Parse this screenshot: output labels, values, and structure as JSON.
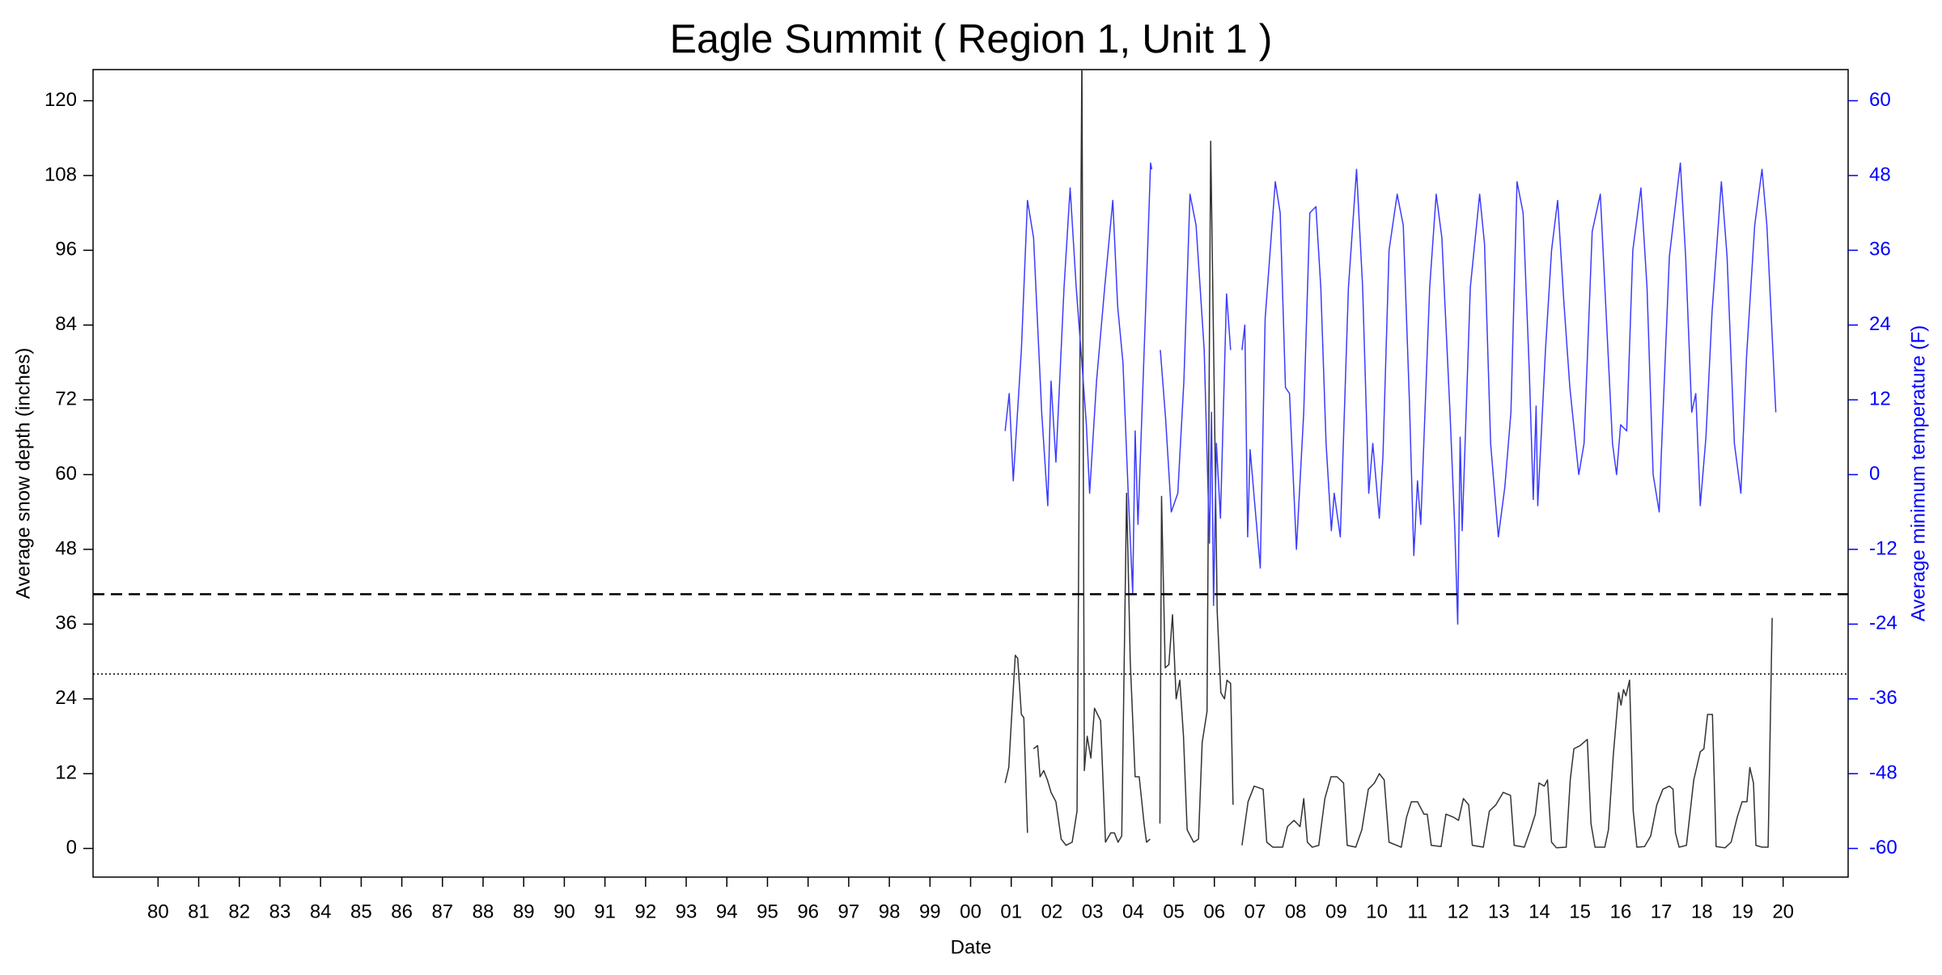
{
  "chart_data": {
    "type": "line",
    "title": "Eagle Summit ( Region 1, Unit 1 )",
    "x_label": "Date",
    "y_label": "Average snow depth (inches)",
    "y2_label": "Average minimum temperature (F)",
    "y2_color": "#0000ff",
    "xlim": [
      1978.4,
      2021.6
    ],
    "ylim": [
      -4.6,
      125
    ],
    "y2lim": [
      -64.6,
      65
    ],
    "xticks": [
      {
        "value": 1980,
        "label": "80"
      },
      {
        "value": 1981,
        "label": "81"
      },
      {
        "value": 1982,
        "label": "82"
      },
      {
        "value": 1983,
        "label": "83"
      },
      {
        "value": 1984,
        "label": "84"
      },
      {
        "value": 1985,
        "label": "85"
      },
      {
        "value": 1986,
        "label": "86"
      },
      {
        "value": 1987,
        "label": "87"
      },
      {
        "value": 1988,
        "label": "88"
      },
      {
        "value": 1989,
        "label": "89"
      },
      {
        "value": 1990,
        "label": "90"
      },
      {
        "value": 1991,
        "label": "91"
      },
      {
        "value": 1992,
        "label": "92"
      },
      {
        "value": 1993,
        "label": "93"
      },
      {
        "value": 1994,
        "label": "94"
      },
      {
        "value": 1995,
        "label": "95"
      },
      {
        "value": 1996,
        "label": "96"
      },
      {
        "value": 1997,
        "label": "97"
      },
      {
        "value": 1998,
        "label": "98"
      },
      {
        "value": 1999,
        "label": "99"
      },
      {
        "value": 2000,
        "label": "00"
      },
      {
        "value": 2001,
        "label": "01"
      },
      {
        "value": 2002,
        "label": "02"
      },
      {
        "value": 2003,
        "label": "03"
      },
      {
        "value": 2004,
        "label": "04"
      },
      {
        "value": 2005,
        "label": "05"
      },
      {
        "value": 2006,
        "label": "06"
      },
      {
        "value": 2007,
        "label": "07"
      },
      {
        "value": 2008,
        "label": "08"
      },
      {
        "value": 2009,
        "label": "09"
      },
      {
        "value": 2010,
        "label": "10"
      },
      {
        "value": 2011,
        "label": "11"
      },
      {
        "value": 2012,
        "label": "12"
      },
      {
        "value": 2013,
        "label": "13"
      },
      {
        "value": 2014,
        "label": "14"
      },
      {
        "value": 2015,
        "label": "15"
      },
      {
        "value": 2016,
        "label": "16"
      },
      {
        "value": 2017,
        "label": "17"
      },
      {
        "value": 2018,
        "label": "18"
      },
      {
        "value": 2019,
        "label": "19"
      },
      {
        "value": 2020,
        "label": "20"
      }
    ],
    "yticks": [
      0,
      12,
      24,
      36,
      48,
      60,
      72,
      84,
      96,
      108,
      120
    ],
    "y2ticks": [
      -60,
      -48,
      -36,
      -24,
      -12,
      0,
      12,
      24,
      36,
      48,
      60
    ],
    "hlines": [
      {
        "value": 40.8,
        "dash": "dashed"
      },
      {
        "value": 28,
        "dash": "dotted"
      }
    ],
    "series": [
      {
        "color": "#333333",
        "x": [
          2000.85,
          2000.94,
          2001.0,
          2001.1,
          2001.16,
          2001.25,
          2001.31,
          2001.4,
          2001.45,
          2001.55,
          2001.65,
          2001.71,
          2001.8,
          2001.89,
          2001.98,
          2002.1,
          2002.23,
          2002.35,
          2002.5,
          2002.62,
          2002.74,
          2002.8,
          2002.87,
          2002.96,
          2003.05,
          2003.2,
          2003.32,
          2003.45,
          2003.54,
          2003.63,
          2003.72,
          2003.84,
          2003.93,
          2004.05,
          2004.15,
          2004.27,
          2004.33,
          2004.42,
          2004.5,
          2004.66,
          2004.7,
          2004.79,
          2004.88,
          2004.97,
          2005.06,
          2005.15,
          2005.24,
          2005.33,
          2005.49,
          2005.61,
          2005.7,
          2005.82,
          2005.91,
          2006.0,
          2006.07,
          2006.16,
          2006.25,
          2006.31,
          2006.4,
          2006.46,
          2006.55,
          2006.68,
          2006.83,
          2006.98,
          2007.2,
          2007.29,
          2007.44,
          2007.68,
          2007.8,
          2007.96,
          2008.11,
          2008.2,
          2008.29,
          2008.41,
          2008.57,
          2008.72,
          2008.87,
          2009.02,
          2009.18,
          2009.27,
          2009.48,
          2009.63,
          2009.79,
          2009.94,
          2010.06,
          2010.18,
          2010.3,
          2010.6,
          2010.73,
          2010.85,
          2011.0,
          2011.16,
          2011.24,
          2011.34,
          2011.58,
          2011.7,
          2011.89,
          2012.01,
          2012.13,
          2012.26,
          2012.35,
          2012.62,
          2012.77,
          2012.93,
          2013.11,
          2013.29,
          2013.38,
          2013.63,
          2013.78,
          2013.9,
          2013.99,
          2014.12,
          2014.2,
          2014.3,
          2014.42,
          2014.66,
          2014.76,
          2014.85,
          2015.0,
          2015.18,
          2015.27,
          2015.37,
          2015.61,
          2015.7,
          2015.82,
          2015.95,
          2016.01,
          2016.07,
          2016.13,
          2016.22,
          2016.31,
          2016.4,
          2016.59,
          2016.74,
          2016.89,
          2017.04,
          2017.2,
          2017.29,
          2017.35,
          2017.44,
          2017.62,
          2017.8,
          2017.96,
          2018.05,
          2018.14,
          2018.26,
          2018.35,
          2018.57,
          2018.72,
          2018.87,
          2018.99,
          2019.11,
          2019.18,
          2019.27,
          2019.33,
          2019.48,
          2019.63,
          2019.73
        ],
        "values": [
          10.5,
          13,
          20,
          31,
          30.5,
          21.5,
          21,
          2.5,
          null,
          16,
          16.5,
          11.5,
          12.5,
          11,
          9,
          7.5,
          1.5,
          0.5,
          1,
          6,
          128,
          12.5,
          18,
          14.5,
          22.5,
          20.5,
          1,
          2.5,
          2.5,
          1,
          2,
          57,
          30,
          11.5,
          11.5,
          4,
          1,
          1.5,
          null,
          4,
          56.5,
          29,
          29.5,
          37.5,
          24,
          27,
          18,
          3,
          1,
          1.5,
          17,
          22,
          113.5,
          72,
          38,
          25,
          24,
          27,
          26.5,
          7,
          null,
          0.5,
          7.5,
          10,
          9.5,
          1,
          0.2,
          0.2,
          3.5,
          4.5,
          3.5,
          8,
          1,
          0.2,
          0.5,
          8,
          11.5,
          11.5,
          10.5,
          0.5,
          0.2,
          3,
          9.5,
          10.5,
          12,
          11,
          1,
          0.2,
          5,
          7.5,
          7.5,
          5.5,
          5.5,
          0.5,
          0.3,
          5.5,
          5,
          4.5,
          8,
          7,
          0.5,
          0.2,
          6,
          7,
          9,
          8.5,
          0.5,
          0.2,
          3,
          5.5,
          10.5,
          10,
          11,
          1,
          0.1,
          0.2,
          11,
          16,
          16.5,
          17.5,
          4,
          0.2,
          0.2,
          3,
          15,
          25,
          23,
          25.5,
          24.5,
          27,
          6,
          0.2,
          0.3,
          2,
          7,
          9.5,
          10,
          9.5,
          2.5,
          0.2,
          0.5,
          11,
          15.5,
          16,
          21.5,
          21.5,
          0.3,
          0.1,
          1,
          5,
          7.5,
          7.5,
          13,
          10.5,
          0.5,
          0.2,
          0.2,
          37
        ]
      },
      {
        "color": "#3b3bff",
        "axis": "y2",
        "x": [
          2000.85,
          2000.95,
          2001.05,
          2001.25,
          2001.4,
          2001.55,
          2001.75,
          2001.9,
          2001.98,
          2002.1,
          2002.3,
          2002.45,
          2002.6,
          2002.75,
          2002.85,
          2002.93,
          2003.1,
          2003.3,
          2003.5,
          2003.62,
          2003.75,
          2003.88,
          2003.99,
          2004.05,
          2004.12,
          2004.3,
          2004.43,
          2004.46,
          2004.55,
          2004.67,
          2004.8,
          2004.94,
          2005.1,
          2005.25,
          2005.4,
          2005.55,
          2005.75,
          2005.88,
          2005.93,
          2005.98,
          2006.05,
          2006.15,
          2006.3,
          2006.4,
          2006.55,
          2006.68,
          2006.75,
          2006.82,
          2006.88,
          2007.13,
          2007.25,
          2007.5,
          2007.62,
          2007.75,
          2007.85,
          2008.02,
          2008.2,
          2008.35,
          2008.5,
          2008.62,
          2008.75,
          2008.88,
          2008.95,
          2009.1,
          2009.3,
          2009.5,
          2009.65,
          2009.8,
          2009.9,
          2010.06,
          2010.15,
          2010.3,
          2010.5,
          2010.65,
          2010.8,
          2010.91,
          2011.0,
          2011.08,
          2011.3,
          2011.46,
          2011.6,
          2011.8,
          2011.92,
          2011.99,
          2012.05,
          2012.1,
          2012.3,
          2012.53,
          2012.65,
          2012.8,
          2012.99,
          2013.15,
          2013.3,
          2013.45,
          2013.6,
          2013.75,
          2013.85,
          2013.92,
          2013.96,
          2014.15,
          2014.3,
          2014.45,
          2014.6,
          2014.75,
          2014.97,
          2015.1,
          2015.3,
          2015.5,
          2015.65,
          2015.8,
          2015.9,
          2016.0,
          2016.15,
          2016.3,
          2016.5,
          2016.65,
          2016.8,
          2016.95,
          2017.0,
          2017.2,
          2017.47,
          2017.6,
          2017.75,
          2017.85,
          2017.96,
          2018.1,
          2018.25,
          2018.48,
          2018.62,
          2018.8,
          2018.96,
          2019.1,
          2019.3,
          2019.48,
          2019.6,
          2019.82
        ],
        "values": [
          7,
          13,
          -1,
          20,
          44,
          38,
          10,
          -5,
          15,
          2,
          30,
          46,
          30,
          17,
          8,
          -3,
          15,
          30,
          44,
          27,
          18,
          -3,
          -19,
          7,
          -8,
          25,
          50,
          49,
          null,
          20,
          9,
          -6,
          -3,
          15,
          45,
          40,
          20,
          -11,
          10,
          -21,
          5,
          -7,
          29,
          20,
          null,
          20,
          24,
          -10,
          4,
          -15,
          25,
          47,
          42,
          14,
          13,
          -12,
          10,
          42,
          43,
          30,
          5,
          -9,
          -3,
          -10,
          30,
          49,
          30,
          -3,
          5,
          -7,
          3,
          36,
          45,
          40,
          12,
          -13,
          -1,
          -8,
          30,
          45,
          38,
          10,
          -9,
          -24,
          6,
          -9,
          30,
          45,
          37,
          5,
          -10,
          -2,
          10,
          47,
          42,
          17,
          -4,
          11,
          -5,
          20,
          36,
          44,
          28,
          14,
          0,
          5,
          39,
          45,
          25,
          5,
          0,
          8,
          7,
          36,
          46,
          30,
          0,
          -6,
          3,
          35,
          50,
          35,
          10,
          13,
          -5,
          6,
          26,
          47,
          35,
          5,
          -3,
          19,
          40,
          49,
          40,
          10
        ]
      }
    ]
  }
}
